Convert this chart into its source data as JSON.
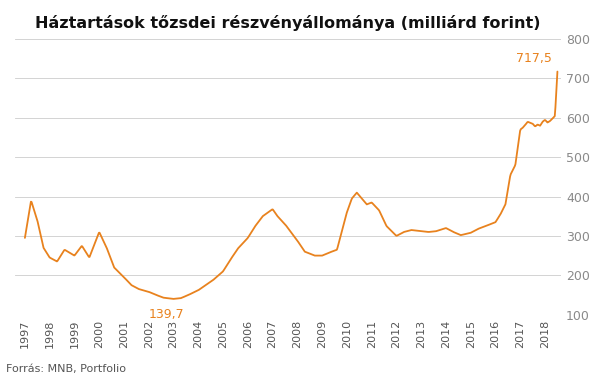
{
  "title": "Háztartások tőzsdei részvényállománya (milliárd forint)",
  "line_color": "#E8821E",
  "background_color": "#ffffff",
  "grid_color": "#cccccc",
  "ylabel_color": "#8a8a8a",
  "xlabel_color": "#555555",
  "annotation_color": "#E8821E",
  "source_text": "Forrás: MNB, Portfolio",
  "ylim": [
    100,
    800
  ],
  "yticks": [
    100,
    200,
    300,
    400,
    500,
    600,
    700,
    800
  ],
  "xtick_labels": [
    "1997",
    "1998",
    "1999",
    "2000",
    "2001",
    "2002",
    "2003",
    "2004",
    "2005",
    "2006",
    "2007",
    "2008",
    "2009",
    "2010",
    "2011",
    "2012",
    "2013",
    "2014",
    "2015",
    "2016",
    "2017",
    "2018"
  ],
  "min_label": "139,7",
  "max_label": "717,5",
  "key_years": [
    1997.0,
    1997.25,
    1997.5,
    1997.75,
    1998.0,
    1998.3,
    1998.6,
    1999.0,
    1999.3,
    1999.6,
    2000.0,
    2000.3,
    2000.6,
    2001.0,
    2001.3,
    2001.6,
    2002.0,
    2002.3,
    2002.6,
    2003.0,
    2003.3,
    2003.6,
    2004.0,
    2004.3,
    2004.6,
    2005.0,
    2005.3,
    2005.6,
    2006.0,
    2006.3,
    2006.6,
    2007.0,
    2007.2,
    2007.5,
    2008.0,
    2008.3,
    2008.7,
    2009.0,
    2009.3,
    2009.6,
    2010.0,
    2010.2,
    2010.4,
    2010.6,
    2010.8,
    2011.0,
    2011.3,
    2011.6,
    2012.0,
    2012.3,
    2012.6,
    2013.0,
    2013.3,
    2013.6,
    2014.0,
    2014.3,
    2014.6,
    2015.0,
    2015.3,
    2015.6,
    2016.0,
    2016.2,
    2016.4,
    2016.6,
    2016.8,
    2017.0,
    2017.1,
    2017.2,
    2017.3,
    2017.5,
    2017.6,
    2017.7,
    2017.8,
    2017.9,
    2018.0,
    2018.1,
    2018.2,
    2018.3,
    2018.4,
    2018.5
  ],
  "key_vals": [
    295,
    390,
    340,
    270,
    245,
    235,
    265,
    250,
    275,
    245,
    310,
    270,
    220,
    195,
    175,
    165,
    158,
    150,
    143,
    140,
    142,
    150,
    162,
    175,
    188,
    210,
    240,
    268,
    295,
    325,
    350,
    368,
    350,
    330,
    288,
    260,
    250,
    250,
    258,
    265,
    360,
    395,
    410,
    395,
    380,
    385,
    365,
    325,
    300,
    310,
    315,
    312,
    310,
    312,
    320,
    310,
    302,
    308,
    318,
    325,
    335,
    355,
    380,
    455,
    480,
    570,
    575,
    582,
    590,
    585,
    578,
    583,
    580,
    590,
    595,
    588,
    592,
    598,
    605,
    717.5
  ]
}
